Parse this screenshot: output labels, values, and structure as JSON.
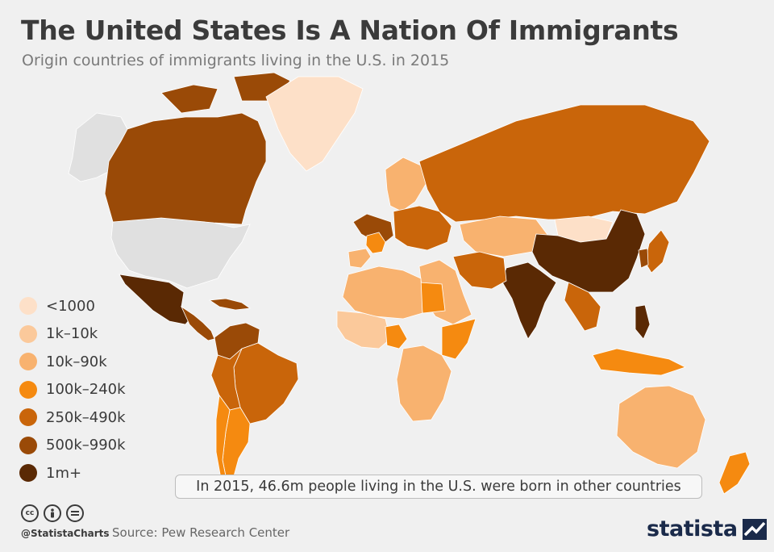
{
  "header": {
    "title": "The United States Is A Nation Of Immigrants",
    "subtitle": "Origin countries of immigrants living in the U.S. in 2015"
  },
  "legend": {
    "items": [
      {
        "label": "<1000",
        "color": "#fde0c8"
      },
      {
        "label": "1k–10k",
        "color": "#fbc99b"
      },
      {
        "label": "10k–90k",
        "color": "#f8b26f"
      },
      {
        "label": "100k–240k",
        "color": "#f58a10"
      },
      {
        "label": "250k–490k",
        "color": "#c9650a"
      },
      {
        "label": "500k–990k",
        "color": "#9a4a07"
      },
      {
        "label": "1m+",
        "color": "#5a2904"
      }
    ]
  },
  "map_data": {
    "us_color": "#e0e0e0",
    "regions": [
      {
        "region": "Alaska",
        "class": "us"
      },
      {
        "region": "United States",
        "class": "us"
      },
      {
        "region": "Canada",
        "class": "500k–990k"
      },
      {
        "region": "Greenland",
        "class": "<1000"
      },
      {
        "region": "Mexico",
        "class": "1m+"
      },
      {
        "region": "Central America",
        "class": "500k–990k"
      },
      {
        "region": "Caribbean",
        "class": "500k–990k"
      },
      {
        "region": "Colombia / Venezuela",
        "class": "500k–990k"
      },
      {
        "region": "Brazil",
        "class": "250k–490k"
      },
      {
        "region": "Peru / Bolivia",
        "class": "250k–490k"
      },
      {
        "region": "Argentina",
        "class": "100k–240k"
      },
      {
        "region": "Chile",
        "class": "100k–240k"
      },
      {
        "region": "Western Europe",
        "class": "500k–990k"
      },
      {
        "region": "France",
        "class": "100k–240k"
      },
      {
        "region": "Iberia",
        "class": "10k–90k"
      },
      {
        "region": "Scandinavia",
        "class": "10k–90k"
      },
      {
        "region": "Eastern Europe",
        "class": "250k–490k"
      },
      {
        "region": "Russia",
        "class": "250k–490k"
      },
      {
        "region": "Central Asia",
        "class": "10k–90k"
      },
      {
        "region": "Mongolia",
        "class": "<1000"
      },
      {
        "region": "China",
        "class": "1m+"
      },
      {
        "region": "India",
        "class": "1m+"
      },
      {
        "region": "Middle East",
        "class": "10k–90k"
      },
      {
        "region": "Iran / Iraq",
        "class": "250k–490k"
      },
      {
        "region": "Egypt",
        "class": "100k–240k"
      },
      {
        "region": "North Africa",
        "class": "10k–90k"
      },
      {
        "region": "West Africa",
        "class": "1k–10k"
      },
      {
        "region": "Nigeria",
        "class": "100k–240k"
      },
      {
        "region": "East Africa",
        "class": "100k–240k"
      },
      {
        "region": "Southern Africa",
        "class": "10k–90k"
      },
      {
        "region": "Southeast Asia",
        "class": "250k–490k"
      },
      {
        "region": "Philippines",
        "class": "1m+"
      },
      {
        "region": "Japan",
        "class": "250k–490k"
      },
      {
        "region": "Korea",
        "class": "500k–990k"
      },
      {
        "region": "Indonesia",
        "class": "100k–240k"
      },
      {
        "region": "Australia",
        "class": "10k–90k"
      },
      {
        "region": "New Zealand",
        "class": "100k–240k"
      }
    ]
  },
  "note": "In 2015, 46.6m people living in the U.S. were born in other countries",
  "footer": {
    "handle": "@StatistaCharts",
    "source": "Source: Pew Research Center",
    "logo_text": "statista"
  }
}
